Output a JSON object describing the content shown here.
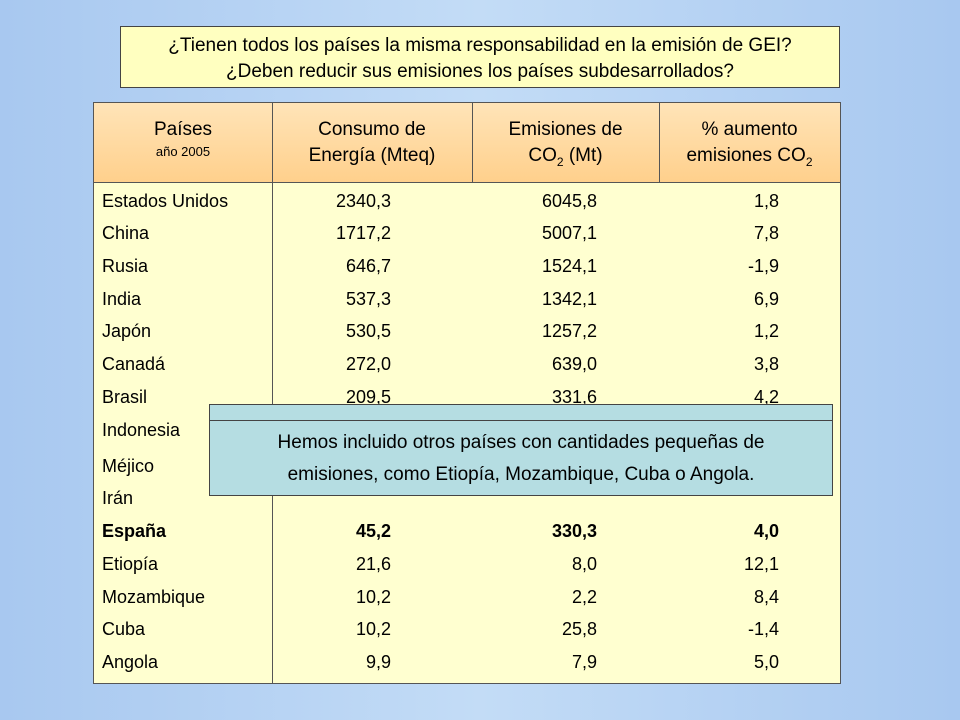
{
  "question": {
    "line1": "¿Tienen todos los países la misma responsabilidad en la emisión de GEI?",
    "line2": "¿Deben reducir sus emisiones los países subdesarrollados?"
  },
  "table": {
    "headers": {
      "country": "Países",
      "country_sub": "año 2005",
      "energy_line1": "Consumo de",
      "energy_line2": "Energía (Mteq)",
      "emissions_line1": "Emisiones de",
      "emissions_line2_pre": "CO",
      "emissions_line2_sub": "2",
      "emissions_line2_post": " (Mt)",
      "increase_line1": "% aumento",
      "increase_line2_pre": "emisiones CO",
      "increase_line2_sub": "2"
    },
    "rows": [
      {
        "country": "Estados Unidos",
        "energy": "2340,3",
        "emissions": "6045,8",
        "increase": "1,8"
      },
      {
        "country": "China",
        "energy": "1717,2",
        "emissions": "5007,1",
        "increase": "7,8"
      },
      {
        "country": "Rusia",
        "energy": "646,7",
        "emissions": "1524,1",
        "increase": "-1,9"
      },
      {
        "country": "India",
        "energy": "537,3",
        "emissions": "1342,1",
        "increase": "6,9"
      },
      {
        "country": "Japón",
        "energy": "530,5",
        "emissions": "1257,2",
        "increase": "1,2"
      },
      {
        "country": "Canadá",
        "energy": "272,0",
        "emissions": "639,0",
        "increase": "3,8"
      },
      {
        "country": "Brasil",
        "energy": "209,5",
        "emissions": "331,6",
        "increase": "4,2"
      },
      {
        "country": "Indonesia",
        "energy": "",
        "emissions": "",
        "increase": ""
      },
      {
        "country": "Méjico",
        "energy": "",
        "emissions": "",
        "increase": ""
      },
      {
        "country": "Irán",
        "energy": "",
        "emissions": "",
        "increase": ""
      },
      {
        "country": "España",
        "energy": "45,2",
        "emissions": "330,3",
        "increase": "4,0",
        "bold": true
      },
      {
        "country": "Etiopía",
        "energy": "21,6",
        "emissions": "8,0",
        "increase": "12,1"
      },
      {
        "country": "Mozambique",
        "energy": "10,2",
        "emissions": "2,2",
        "increase": "8,4"
      },
      {
        "country": "Cuba",
        "energy": "10,2",
        "emissions": "25,8",
        "increase": "-1,4"
      },
      {
        "country": "Angola",
        "energy": "9,9",
        "emissions": "7,9",
        "increase": "5,0"
      }
    ]
  },
  "note": {
    "line1": "Hemos incluido otros países con cantidades pequeñas de",
    "line2": "emisiones, como Etiopía, Mozambique, Cuba o Angola."
  },
  "colors": {
    "background": "#b0cff2",
    "question_bg": "#ffffc0",
    "header_bg": "#ffd08c",
    "table_bg": "#ffffd0",
    "note_bg": "#b5dde2"
  }
}
